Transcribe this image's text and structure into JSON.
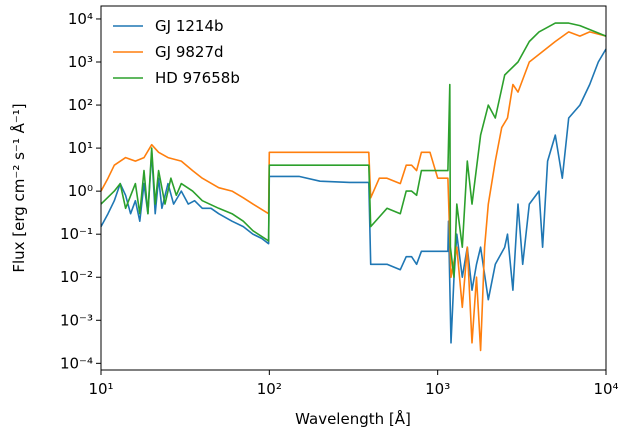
{
  "chart_data": {
    "type": "line",
    "xlabel": "Wavelength [Å]",
    "ylabel": "Flux [erg cm⁻² s⁻¹ Å⁻¹]",
    "xscale": "log",
    "yscale": "log",
    "xlim": [
      10,
      10000
    ],
    "ylim": [
      7e-05,
      20000
    ],
    "xticks": [
      {
        "value": 10,
        "label": "10¹"
      },
      {
        "value": 100,
        "label": "10²"
      },
      {
        "value": 1000,
        "label": "10³"
      },
      {
        "value": 10000,
        "label": "10⁴"
      }
    ],
    "yticks": [
      {
        "value": 0.0001,
        "label": "10⁻⁴"
      },
      {
        "value": 0.001,
        "label": "10⁻³"
      },
      {
        "value": 0.01,
        "label": "10⁻²"
      },
      {
        "value": 0.1,
        "label": "10⁻¹"
      },
      {
        "value": 1,
        "label": "10⁰"
      },
      {
        "value": 10,
        "label": "10¹"
      },
      {
        "value": 100,
        "label": "10²"
      },
      {
        "value": 1000,
        "label": "10³"
      },
      {
        "value": 10000,
        "label": "10⁴"
      }
    ],
    "legend": "upper left",
    "series": [
      {
        "name": "GJ 1214b",
        "color": "#1f77b4",
        "x": [
          10,
          11,
          12,
          13,
          14,
          15,
          16,
          17,
          18,
          19,
          20,
          21,
          22,
          23,
          25,
          27,
          30,
          33,
          36,
          40,
          45,
          50,
          60,
          70,
          80,
          90,
          99,
          100,
          150,
          200,
          300,
          390,
          400,
          500,
          600,
          650,
          700,
          750,
          800,
          900,
          1000,
          1150,
          1160,
          1200,
          1250,
          1300,
          1400,
          1500,
          1600,
          1700,
          1800,
          2000,
          2200,
          2500,
          2600,
          2800,
          3000,
          3200,
          3500,
          4000,
          4200,
          4500,
          5000,
          5500,
          6000,
          7000,
          8000,
          9000,
          10000
        ],
        "values": [
          0.15,
          0.3,
          0.6,
          1.5,
          0.8,
          0.3,
          0.6,
          0.2,
          1.5,
          0.3,
          8,
          0.3,
          2,
          0.4,
          1.5,
          0.5,
          1,
          0.5,
          0.6,
          0.4,
          0.4,
          0.3,
          0.2,
          0.15,
          0.1,
          0.08,
          0.06,
          2.2,
          2.2,
          1.7,
          1.6,
          1.6,
          0.02,
          0.02,
          0.015,
          0.03,
          0.03,
          0.02,
          0.04,
          0.04,
          0.04,
          0.04,
          0.2,
          0.0003,
          0.01,
          0.1,
          0.01,
          0.05,
          0.005,
          0.02,
          0.05,
          0.003,
          0.02,
          0.05,
          0.1,
          0.005,
          0.5,
          0.02,
          0.5,
          1,
          0.05,
          5,
          20,
          2,
          50,
          100,
          300,
          1000,
          2000
        ]
      },
      {
        "name": "GJ 9827d",
        "color": "#ff7f0e",
        "x": [
          10,
          11,
          12,
          14,
          16,
          18,
          20,
          22,
          25,
          30,
          35,
          40,
          50,
          60,
          70,
          80,
          99,
          100,
          200,
          300,
          390,
          400,
          450,
          500,
          600,
          650,
          700,
          750,
          800,
          900,
          1000,
          1150,
          1200,
          1300,
          1400,
          1500,
          1600,
          1700,
          1800,
          1900,
          2000,
          2200,
          2400,
          2600,
          2800,
          3000,
          3500,
          4000,
          5000,
          6000,
          7000,
          8000,
          10000
        ],
        "values": [
          1,
          2,
          4,
          6,
          5,
          6,
          12,
          8,
          6,
          5,
          3,
          2,
          1.2,
          1,
          0.7,
          0.5,
          0.3,
          8,
          8,
          8,
          8,
          0.7,
          2,
          2,
          1.5,
          4,
          4,
          3,
          8,
          8,
          2,
          2,
          0.01,
          0.05,
          0.002,
          0.05,
          0.0003,
          0.01,
          0.0002,
          0.05,
          0.5,
          5,
          30,
          50,
          300,
          200,
          1000,
          1500,
          3000,
          5000,
          4000,
          5000,
          4000
        ]
      },
      {
        "name": "HD 97658b",
        "color": "#2ca02c",
        "x": [
          10,
          12,
          13,
          14,
          16,
          17,
          18,
          19,
          20,
          21,
          22,
          24,
          26,
          28,
          30,
          35,
          40,
          50,
          60,
          70,
          80,
          99,
          100,
          200,
          300,
          390,
          400,
          500,
          600,
          650,
          700,
          750,
          800,
          1000,
          1150,
          1180,
          1190,
          1250,
          1300,
          1400,
          1500,
          1600,
          1800,
          2000,
          2200,
          2500,
          3000,
          3500,
          4000,
          5000,
          6000,
          7000,
          10000
        ],
        "values": [
          0.5,
          1,
          1.5,
          0.4,
          1.5,
          0.3,
          3,
          0.3,
          10,
          0.5,
          3,
          0.5,
          2,
          0.8,
          1.5,
          1,
          0.6,
          0.4,
          0.3,
          0.2,
          0.12,
          0.07,
          4,
          4,
          4,
          4,
          0.15,
          0.4,
          0.3,
          1,
          1,
          0.8,
          3,
          3,
          3,
          300,
          0.05,
          0.01,
          0.5,
          0.05,
          5,
          0.5,
          20,
          100,
          50,
          500,
          1000,
          3000,
          5000,
          8000,
          8000,
          7000,
          4000
        ]
      }
    ]
  }
}
